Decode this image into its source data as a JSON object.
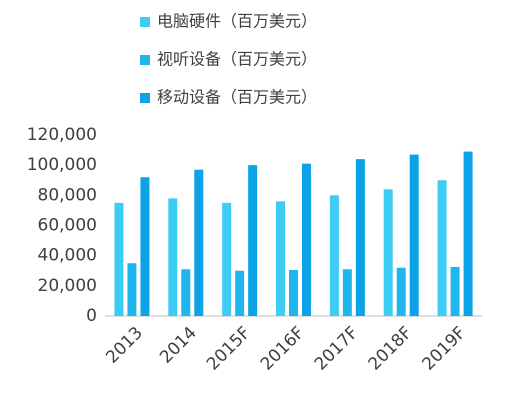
{
  "chart_data": {
    "type": "bar",
    "categories": [
      "2013",
      "2014",
      "2015F",
      "2016F",
      "2017F",
      "2018F",
      "2019F"
    ],
    "series": [
      {
        "name": "电脑硬件（百万美元）",
        "color": "#3cccf4",
        "values": [
          75000,
          78000,
          75000,
          76000,
          80000,
          84000,
          90000
        ]
      },
      {
        "name": "视听设备（百万美元）",
        "color": "#1eb6ee",
        "values": [
          35000,
          31000,
          30000,
          30500,
          31000,
          32000,
          32500
        ]
      },
      {
        "name": "移动设备（百万美元）",
        "color": "#0ba2e6",
        "values": [
          92000,
          97000,
          100000,
          101000,
          104000,
          107000,
          109000
        ]
      }
    ],
    "ylim": [
      0,
      120000
    ],
    "yticks": [
      0,
      {
        "value": 20000,
        "label": "20,000"
      },
      {
        "value": 40000,
        "label": "40,000"
      },
      {
        "value": 60000,
        "label": "60,000"
      },
      {
        "value": 80000,
        "label": "80,000"
      },
      {
        "value": 100000,
        "label": "100,000"
      },
      {
        "value": 120000,
        "label": "120,000"
      }
    ],
    "legend": "top"
  }
}
